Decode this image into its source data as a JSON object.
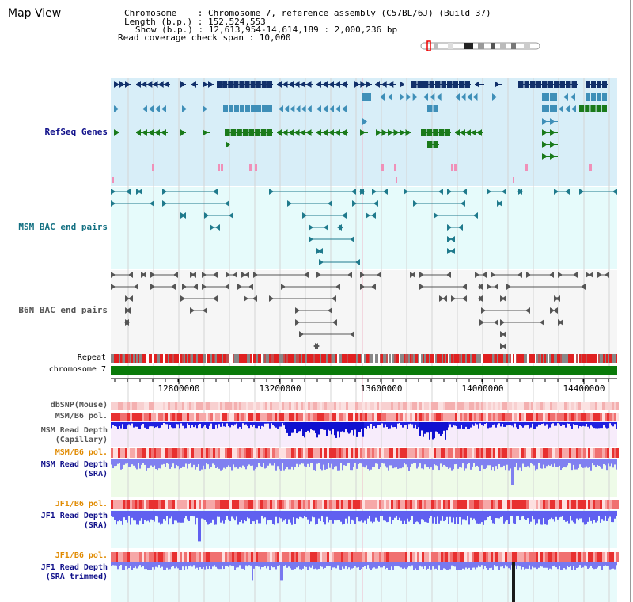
{
  "title": "Map View",
  "info_lines": {
    "chromosome": "Chromosome    : Chromosome 7, reference assembly (C57BL/6J) (Build 37)",
    "length": "Length (b.p.) : 152,524,553",
    "show": "Show (b.p.) : 12,613,954-14,614,189 : 2,000,236 bp",
    "coverage": "Read coverage check span : 10,000"
  },
  "tracks": {
    "refseq": "RefSeq Genes",
    "msm_bac": "MSM BAC end pairs",
    "b6n_bac": "B6N BAC end pairs",
    "repeat": "Repeat",
    "chromosome": "chromosome 7",
    "dbsnp": "dbSNP(Mouse)",
    "msm_pol": "MSM/B6 pol.",
    "msm_depth_cap": "MSM Read Depth",
    "msm_depth_cap_sub": "(Capillary)",
    "msm_pol2": "MSM/B6 pol.",
    "msm_depth_sra": "MSM Read Depth",
    "msm_depth_sra_sub": "(SRA)",
    "jf1_pol": "JF1/B6 pol.",
    "jf1_depth_sra": "JF1 Read Depth",
    "jf1_depth_sra_sub": "(SRA)",
    "jf1_pol2": "JF1/B6 pol.",
    "jf1_depth_trim": "JF1 Read Depth",
    "jf1_depth_trim_sub": "(SRA trimmed)"
  },
  "axis": {
    "ticks": [
      "12800000",
      "13200000",
      "13600000",
      "14000000",
      "14400000"
    ]
  },
  "colors": {
    "refseq_dark": "#12306a",
    "refseq_mid": "#3f8fb8",
    "refseq_green": "#1a7a1a",
    "msm_bac": "#1f7a8c",
    "b6n_bac": "#555555",
    "label_blue": "#10108a",
    "label_orange": "#e08a00",
    "label_teal": "#137082"
  }
}
